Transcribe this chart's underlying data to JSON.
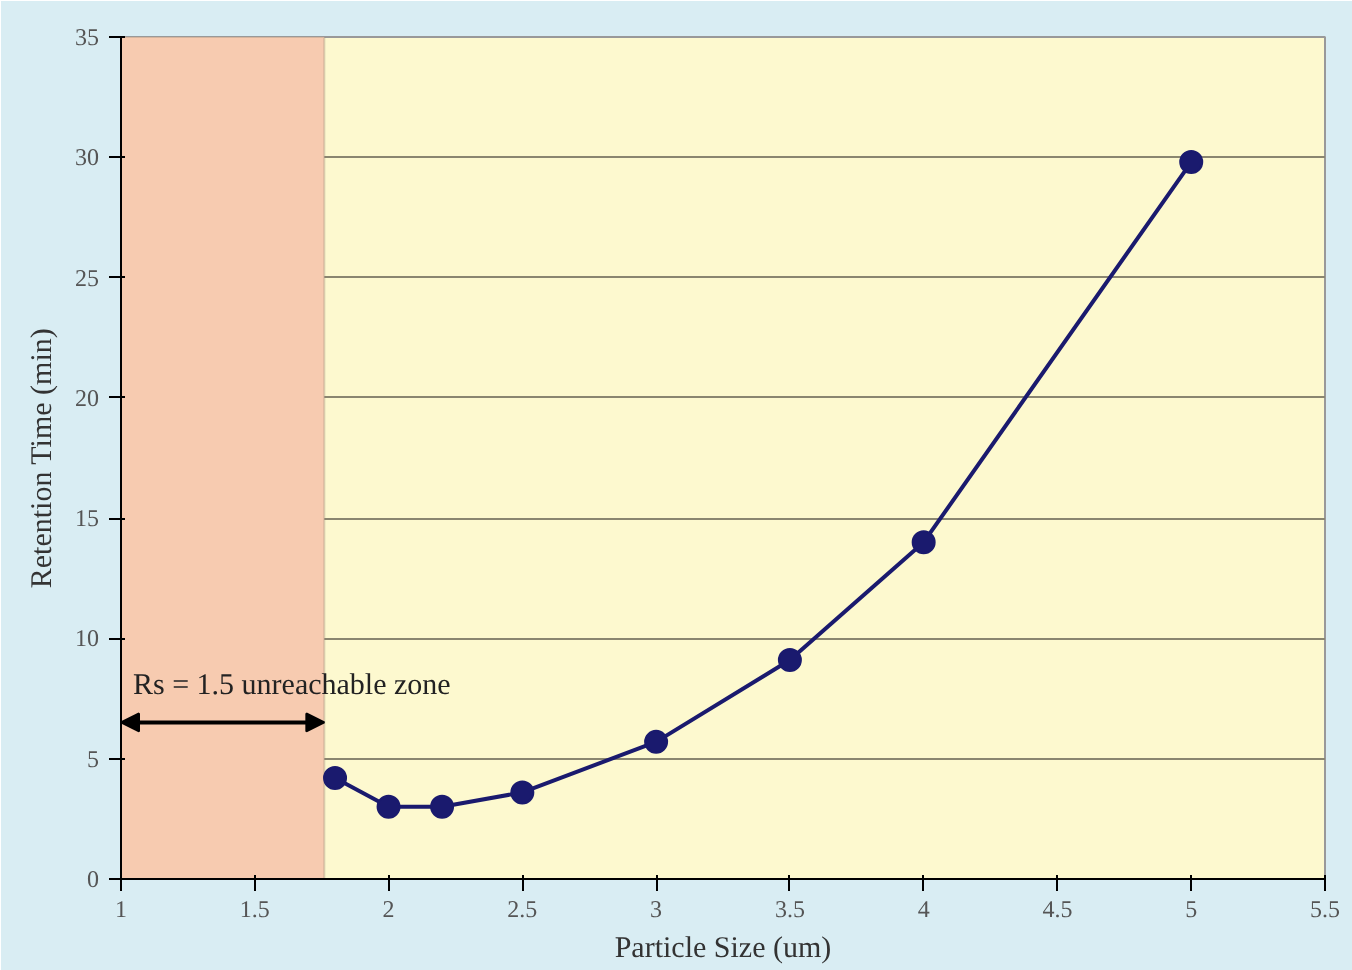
{
  "chart_data": {
    "type": "line",
    "xlabel": "Particle Size (um)",
    "ylabel": "Retention Time (min)",
    "x": [
      1.8,
      2.0,
      2.2,
      2.5,
      3.0,
      3.5,
      4.0,
      5.0
    ],
    "series": [
      {
        "color": "#1a1a6e",
        "values": [
          4.2,
          3.0,
          3.0,
          3.6,
          5.7,
          9.1,
          14.0,
          29.8
        ]
      }
    ],
    "xlim": [
      1,
      5.5
    ],
    "xticks": [
      1,
      1.5,
      2,
      2.5,
      3,
      3.5,
      4,
      4.5,
      5,
      5.5
    ],
    "ylim": [
      0,
      35
    ],
    "yticks": [
      0,
      5,
      10,
      15,
      20,
      25,
      30,
      35
    ],
    "grid": "y",
    "marker": "circle",
    "line_style": "solid",
    "bands": [
      {
        "axis": "x",
        "from": 1,
        "to": 1.76,
        "label": "Rs = 1.5 unreachable zone",
        "color": "#f7cbb0"
      }
    ]
  }
}
